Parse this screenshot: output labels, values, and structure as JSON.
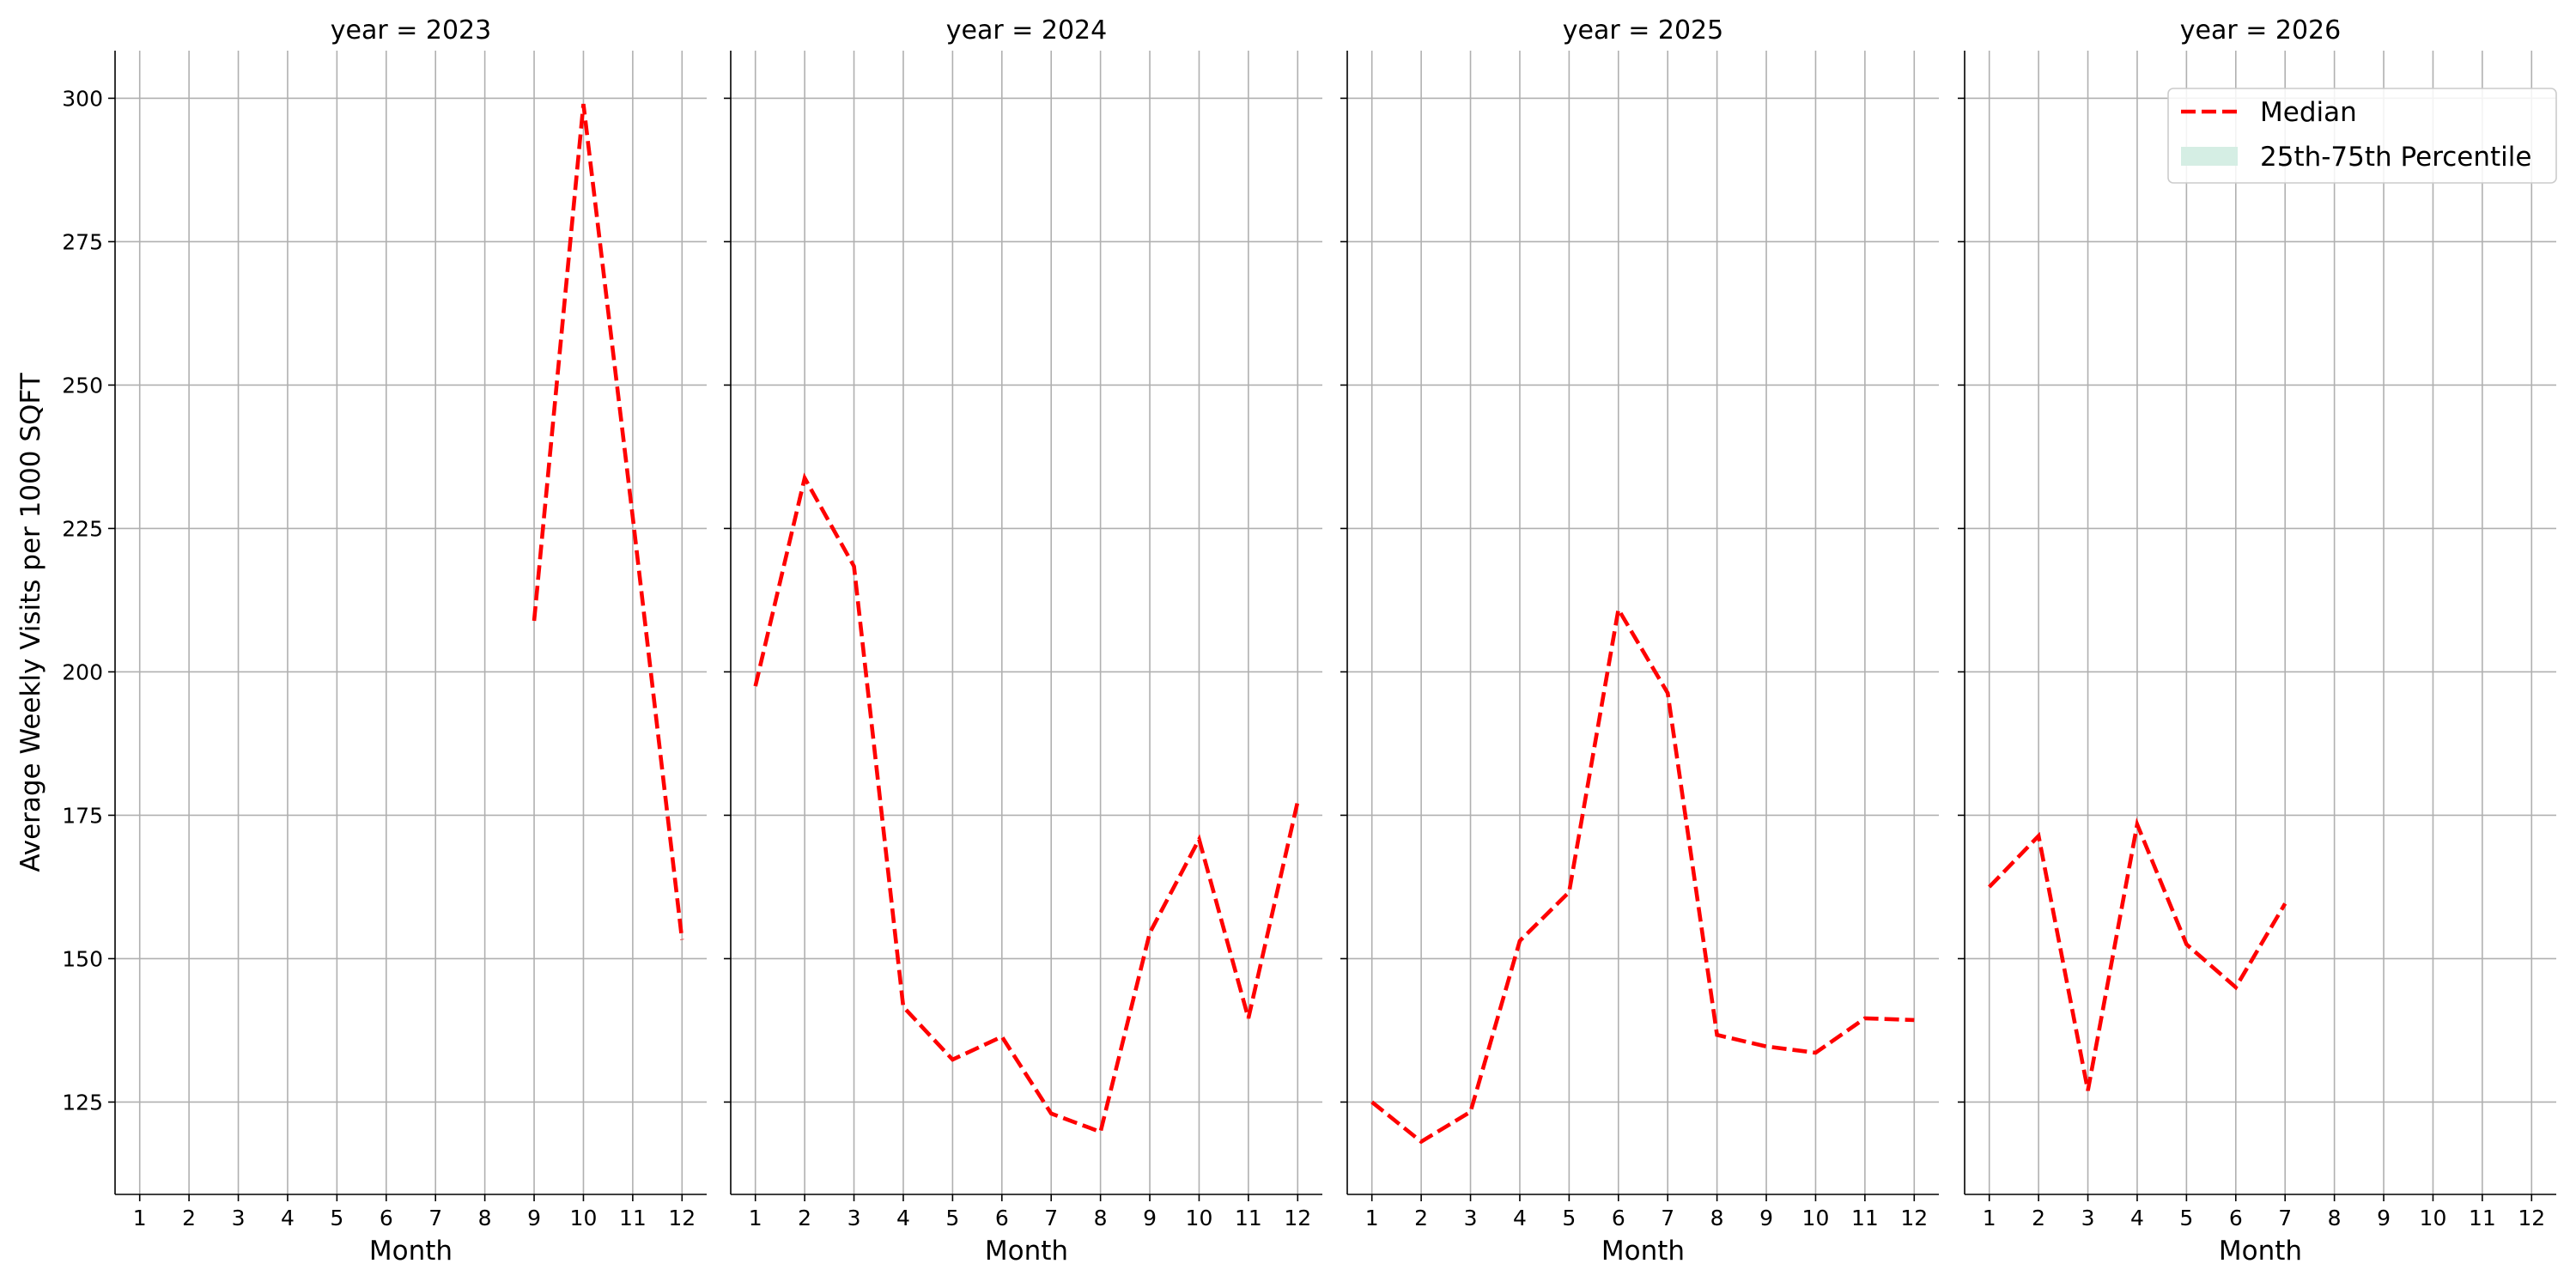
{
  "chart_data": [
    {
      "type": "line",
      "title": "year = 2023",
      "ylabel": "Average Weekly Visits per 1000 SQFT",
      "xlabel": "Month",
      "x": [
        1,
        2,
        3,
        4,
        5,
        6,
        7,
        8,
        9,
        10,
        11,
        12
      ],
      "xlim": [
        0.5,
        12.5
      ],
      "xticks": [
        1,
        2,
        3,
        4,
        5,
        6,
        7,
        8,
        9,
        10,
        11,
        12
      ],
      "ylim": [
        108.9,
        308.3
      ],
      "yticks": [
        125,
        150,
        175,
        200,
        225,
        250,
        275,
        300
      ],
      "grid": true,
      "series": [
        {
          "name": "Median",
          "color": "#ff0000",
          "style": "dashed",
          "values": [
            null,
            null,
            null,
            null,
            null,
            null,
            null,
            null,
            208.9,
            299,
            227,
            153.3
          ]
        }
      ]
    },
    {
      "type": "line",
      "title": "year = 2024",
      "xlabel": "Month",
      "x": [
        1,
        2,
        3,
        4,
        5,
        6,
        7,
        8,
        9,
        10,
        11,
        12
      ],
      "xlim": [
        0.5,
        12.5
      ],
      "xticks": [
        1,
        2,
        3,
        4,
        5,
        6,
        7,
        8,
        9,
        10,
        11,
        12
      ],
      "ylim": [
        108.9,
        308.3
      ],
      "yticks": [
        125,
        150,
        175,
        200,
        225,
        250,
        275,
        300
      ],
      "grid": true,
      "series": [
        {
          "name": "Median",
          "color": "#ff0000",
          "style": "dashed",
          "values": [
            197.5,
            233.8,
            218.4,
            141.6,
            132.4,
            136.4,
            123,
            119.8,
            154.5,
            170.8,
            139.6,
            177.4
          ]
        }
      ]
    },
    {
      "type": "line",
      "title": "year = 2025",
      "xlabel": "Month",
      "x": [
        1,
        2,
        3,
        4,
        5,
        6,
        7,
        8,
        9,
        10,
        11,
        12
      ],
      "xlim": [
        0.5,
        12.5
      ],
      "xticks": [
        1,
        2,
        3,
        4,
        5,
        6,
        7,
        8,
        9,
        10,
        11,
        12
      ],
      "ylim": [
        108.9,
        308.3
      ],
      "yticks": [
        125,
        150,
        175,
        200,
        225,
        250,
        275,
        300
      ],
      "grid": true,
      "series": [
        {
          "name": "Median",
          "color": "#ff0000",
          "style": "dashed",
          "values": [
            125,
            118.1,
            123.3,
            153.1,
            161.6,
            210.9,
            196.3,
            136.7,
            134.7,
            133.6,
            139.6,
            139.3
          ]
        }
      ]
    },
    {
      "type": "line",
      "title": "year = 2026",
      "xlabel": "Month",
      "x": [
        1,
        2,
        3,
        4,
        5,
        6,
        7,
        8,
        9,
        10,
        11,
        12
      ],
      "xlim": [
        0.5,
        12.5
      ],
      "xticks": [
        1,
        2,
        3,
        4,
        5,
        6,
        7,
        8,
        9,
        10,
        11,
        12
      ],
      "ylim": [
        108.9,
        308.3
      ],
      "yticks": [
        125,
        150,
        175,
        200,
        225,
        250,
        275,
        300
      ],
      "grid": true,
      "series": [
        {
          "name": "Median",
          "color": "#ff0000",
          "style": "dashed",
          "values": [
            162.5,
            171.4,
            127,
            173.4,
            152.5,
            145,
            159.6,
            null,
            null,
            null,
            null,
            null
          ]
        }
      ],
      "legend": {
        "loc": "upper right",
        "entries": [
          {
            "name": "Median",
            "color": "#ff0000",
            "style": "dashed"
          },
          {
            "name": "25th-75th Percentile",
            "color": "#d5eee4",
            "style": "band"
          }
        ]
      }
    }
  ]
}
